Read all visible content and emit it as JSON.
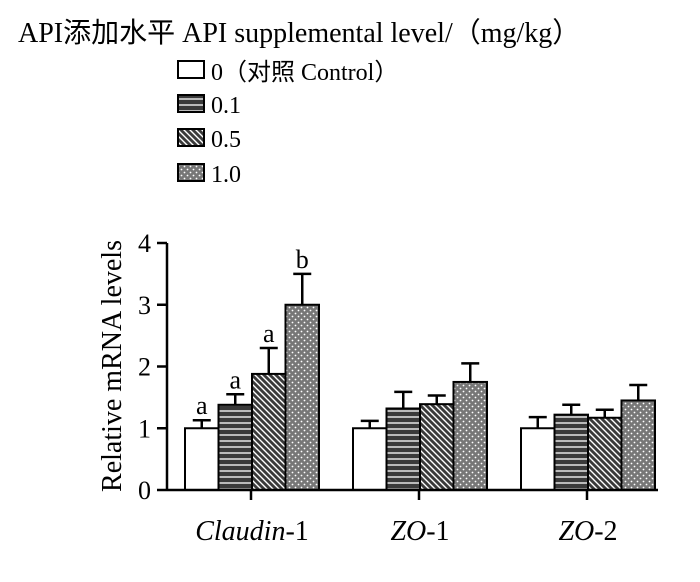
{
  "chart_data": {
    "type": "bar",
    "legend_title": "API添加水平 API supplemental level/（mg/kg）",
    "ylabel": "Relative mRNA levels",
    "xlabel": "",
    "ylim": [
      0,
      4
    ],
    "yticks": [
      "0",
      "1",
      "2",
      "3",
      "4"
    ],
    "legend_position": "top-left",
    "grid": false,
    "categories": [
      {
        "prefix": "Claudin",
        "suffix": "-1"
      },
      {
        "prefix": "ZO",
        "suffix": "-1"
      },
      {
        "prefix": "ZO",
        "suffix": "-2"
      }
    ],
    "series": [
      {
        "name": "0（对照 Control）",
        "pattern": "white",
        "values": [
          1.0,
          1.0,
          1.0
        ],
        "errors": [
          0.13,
          0.12,
          0.18
        ],
        "sig": [
          "a",
          "",
          ""
        ]
      },
      {
        "name": "0.1",
        "pattern": "horizontal",
        "values": [
          1.38,
          1.32,
          1.22
        ],
        "errors": [
          0.17,
          0.27,
          0.16
        ],
        "sig": [
          "a",
          "",
          ""
        ]
      },
      {
        "name": "0.5",
        "pattern": "diagonal",
        "values": [
          1.88,
          1.39,
          1.17
        ],
        "errors": [
          0.42,
          0.14,
          0.13
        ],
        "sig": [
          "a",
          "",
          ""
        ]
      },
      {
        "name": "1.0",
        "pattern": "dotted",
        "values": [
          3.0,
          1.75,
          1.45
        ],
        "errors": [
          0.5,
          0.3,
          0.25
        ],
        "sig": [
          "b",
          "",
          ""
        ]
      }
    ]
  }
}
